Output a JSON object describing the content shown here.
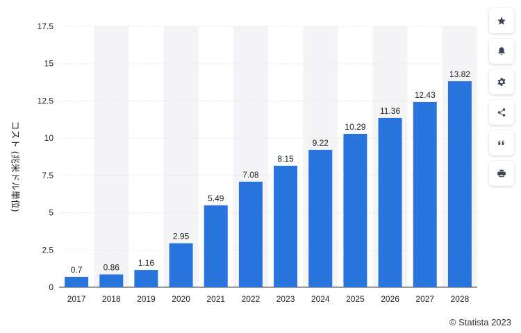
{
  "chart_data": {
    "type": "bar",
    "categories": [
      "2017",
      "2018",
      "2019",
      "2020",
      "2021",
      "2022",
      "2023",
      "2024",
      "2025",
      "2026",
      "2027",
      "2028"
    ],
    "values": [
      0.7,
      0.86,
      1.16,
      2.95,
      5.49,
      7.08,
      8.15,
      9.22,
      10.29,
      11.36,
      12.43,
      13.82
    ],
    "value_labels": [
      "0.7",
      "0.86",
      "1.16",
      "2.95",
      "5.49",
      "7.08",
      "8.15",
      "9.22",
      "10.29",
      "11.36",
      "12.43",
      "13.82"
    ],
    "yticks": [
      0,
      2.5,
      5,
      7.5,
      10,
      12.5,
      15,
      17.5
    ],
    "ytick_labels": [
      "0",
      "2.5",
      "5",
      "7.5",
      "10",
      "12.5",
      "15",
      "17.5"
    ],
    "ylim": [
      0,
      17.5
    ],
    "ylabel": "コスト (兆米ドル単位)",
    "xlabel": "",
    "grid": true,
    "bar_color": "#2a75dd",
    "band_color": "#f4f4f6"
  },
  "toolbar": {
    "buttons": [
      {
        "icon": "star-icon"
      },
      {
        "icon": "bell-icon"
      },
      {
        "icon": "gear-icon"
      },
      {
        "icon": "share-icon"
      },
      {
        "icon": "quote-icon"
      },
      {
        "icon": "print-icon"
      }
    ]
  },
  "credit": "© Statista 2023"
}
